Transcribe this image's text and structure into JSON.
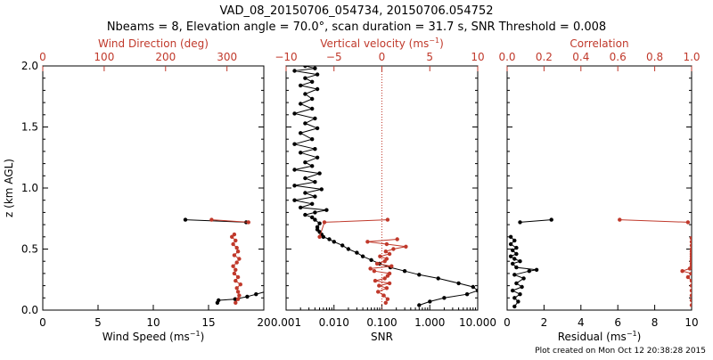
{
  "header": {
    "title": "VAD_08_20150706_054734, 20150706.054752",
    "subtitle": "Nbeams = 8, Elevation angle = 70.0°, scan duration = 31.7 s, SNR Threshold = 0.008"
  },
  "footer": {
    "created": "Plot created on Mon Oct 12 20:38:28 2015"
  },
  "colors": {
    "primary": "#000000",
    "secondary": "#c0392b"
  },
  "chart_data": [
    {
      "type": "line",
      "panel": "wind",
      "ylabel": "z (km AGL)",
      "ylim": [
        0,
        2
      ],
      "yticks": [
        "0.0",
        "0.5",
        "1.0",
        "1.5",
        "2.0"
      ],
      "bottom_axis": {
        "label": "Wind Speed (ms",
        "label_sup": "−1",
        "label_tail": ")",
        "range": [
          0,
          20
        ],
        "ticks": [
          0,
          5,
          10,
          15,
          20
        ],
        "tick_labels": [
          "0",
          "5",
          "10",
          "15",
          "20"
        ]
      },
      "top_axis": {
        "label": "Wind Direction (deg)",
        "range": [
          0,
          360
        ],
        "ticks": [
          0,
          100,
          200,
          300
        ],
        "tick_labels": [
          "0",
          "100",
          "200",
          "300"
        ]
      },
      "series": [
        {
          "axis": "bottom",
          "color": "#000000",
          "x": [
            15.8,
            15.9,
            17.4,
            18.5,
            19.3,
            20.5,
            null,
            12.9,
            18.4
          ],
          "y": [
            0.06,
            0.08,
            0.09,
            0.11,
            0.13,
            0.16,
            null,
            0.74,
            0.72
          ]
        },
        {
          "axis": "top",
          "color": "#c0392b",
          "x": [
            314,
            318,
            320,
            318,
            316,
            322,
            314,
            318,
            312,
            314,
            310,
            316,
            320,
            312,
            318,
            316,
            310,
            314,
            308,
            312,
            null,
            275,
            335
          ],
          "y": [
            0.06,
            0.09,
            0.12,
            0.15,
            0.18,
            0.21,
            0.24,
            0.27,
            0.3,
            0.33,
            0.36,
            0.39,
            0.42,
            0.45,
            0.48,
            0.51,
            0.54,
            0.57,
            0.6,
            0.62,
            null,
            0.74,
            0.72
          ]
        }
      ]
    },
    {
      "type": "line",
      "panel": "snr",
      "ylim": [
        0,
        2
      ],
      "bottom_axis": {
        "label": "SNR",
        "scale": "log",
        "range": [
          0.001,
          10
        ],
        "ticks": [
          0.001,
          0.01,
          0.1,
          1,
          10
        ],
        "tick_labels": [
          "0.001",
          "0.010",
          "0.100",
          "1.000",
          "10.000"
        ]
      },
      "top_axis": {
        "label": "Vertical velocity (ms",
        "label_sup": "−1",
        "label_tail": ")",
        "range": [
          -10,
          10
        ],
        "ticks": [
          -10,
          -5,
          0,
          5,
          10
        ],
        "tick_labels": [
          "−10",
          "−5",
          "0",
          "5",
          "10"
        ]
      },
      "reference_line": {
        "axis": "top",
        "value": 0,
        "style": "dotted"
      },
      "series": [
        {
          "axis": "bottom",
          "scale": "log",
          "color": "#000000",
          "x": [
            0.6,
            1.0,
            2.0,
            6.0,
            10.0,
            8.0,
            4.0,
            1.5,
            0.6,
            0.3,
            0.15,
            0.09,
            0.06,
            0.04,
            0.03,
            0.02,
            0.015,
            0.01,
            0.008,
            0.006,
            0.0055,
            0.005,
            0.0045,
            0.0045,
            0.005,
            0.004,
            0.0035,
            0.0025,
            0.004,
            0.007,
            0.002,
            0.0035,
            0.0015,
            0.004,
            0.0025,
            0.0055,
            0.0015,
            0.004,
            0.0025,
            0.005,
            0.0015,
            0.0035,
            0.0025,
            0.0045,
            0.002,
            0.004,
            0.0015,
            0.0035,
            0.002,
            0.0045,
            0.0025,
            0.004,
            0.0015,
            0.0035,
            0.002,
            0.0035,
            0.0025,
            0.0045,
            0.002,
            0.0035,
            0.0025,
            0.0045,
            0.0015,
            0.004,
            0.0025
          ],
          "y": [
            0.04,
            0.07,
            0.1,
            0.13,
            0.16,
            0.19,
            0.22,
            0.26,
            0.29,
            0.32,
            0.35,
            0.38,
            0.41,
            0.44,
            0.47,
            0.5,
            0.53,
            0.56,
            0.58,
            0.6,
            0.62,
            0.64,
            0.66,
            0.68,
            0.71,
            0.74,
            0.76,
            0.78,
            0.8,
            0.82,
            0.84,
            0.87,
            0.9,
            0.93,
            0.96,
            0.99,
            1.02,
            1.05,
            1.08,
            1.12,
            1.15,
            1.18,
            1.21,
            1.25,
            1.29,
            1.32,
            1.36,
            1.4,
            1.45,
            1.49,
            1.53,
            1.57,
            1.61,
            1.65,
            1.69,
            1.73,
            1.77,
            1.81,
            1.84,
            1.87,
            1.9,
            1.93,
            1.96,
            1.98,
            2.0
          ]
        },
        {
          "axis": "top",
          "color": "#c0392b",
          "x": [
            0.4,
            0.6,
            0.2,
            -0.4,
            0.5,
            -0.3,
            0.8,
            -0.7,
            0.3,
            0.6,
            0.8,
            -0.8,
            -1.2,
            1.0,
            -0.5,
            0.3,
            0.5,
            -0.2,
            0.8,
            0.4,
            1.2,
            2.5,
            0.5,
            -1.5,
            1.6,
            null,
            -6.5,
            -6.0,
            0.6
          ],
          "y": [
            0.06,
            0.09,
            0.12,
            0.15,
            0.18,
            0.2,
            0.22,
            0.24,
            0.26,
            0.28,
            0.3,
            0.32,
            0.34,
            0.36,
            0.38,
            0.4,
            0.42,
            0.44,
            0.46,
            0.48,
            0.5,
            0.52,
            0.54,
            0.56,
            0.58,
            null,
            0.6,
            0.72,
            0.74
          ]
        }
      ]
    },
    {
      "type": "line",
      "panel": "residual",
      "ylim": [
        0,
        2
      ],
      "bottom_axis": {
        "label": "Residual (ms",
        "label_sup": "−1",
        "label_tail": ")",
        "range": [
          0,
          10
        ],
        "ticks": [
          0,
          2,
          4,
          6,
          8,
          10
        ],
        "tick_labels": [
          "0",
          "2",
          "4",
          "6",
          "8",
          "10"
        ]
      },
      "top_axis": {
        "label": "Correlation",
        "range": [
          0,
          1
        ],
        "ticks": [
          0,
          0.2,
          0.4,
          0.6,
          0.8,
          1.0
        ],
        "tick_labels": [
          "0.0",
          "0.2",
          "0.4",
          "0.6",
          "0.8",
          "1.0"
        ]
      },
      "series": [
        {
          "axis": "bottom",
          "color": "#000000",
          "x": [
            0.4,
            0.6,
            0.4,
            0.7,
            0.3,
            0.8,
            0.5,
            0.9,
            0.4,
            1.2,
            1.6,
            0.5,
            0.3,
            0.7,
            0.4,
            0.2,
            0.5,
            0.3,
            0.5,
            0.2,
            0.4,
            0.2,
            null,
            0.7,
            2.4
          ],
          "y": [
            0.03,
            0.07,
            0.1,
            0.13,
            0.16,
            0.19,
            0.22,
            0.26,
            0.29,
            0.32,
            0.33,
            0.35,
            0.38,
            0.4,
            0.42,
            0.44,
            0.46,
            0.49,
            0.51,
            0.54,
            0.57,
            0.6,
            null,
            0.72,
            0.74
          ]
        },
        {
          "axis": "top",
          "color": "#c0392b",
          "x": [
            1.0,
            1.0,
            1.0,
            1.0,
            1.0,
            1.0,
            0.98,
            1.0,
            0.95,
            0.99,
            1.0,
            1.0,
            1.0,
            1.0,
            1.0,
            1.0,
            1.0,
            1.0,
            1.0,
            1.0,
            1.0,
            null,
            0.61,
            0.98
          ],
          "y": [
            0.04,
            0.08,
            0.12,
            0.16,
            0.2,
            0.24,
            0.27,
            0.3,
            0.32,
            0.34,
            0.36,
            0.38,
            0.4,
            0.42,
            0.44,
            0.46,
            0.48,
            0.5,
            0.53,
            0.56,
            0.59,
            null,
            0.74,
            0.72
          ]
        }
      ]
    }
  ]
}
